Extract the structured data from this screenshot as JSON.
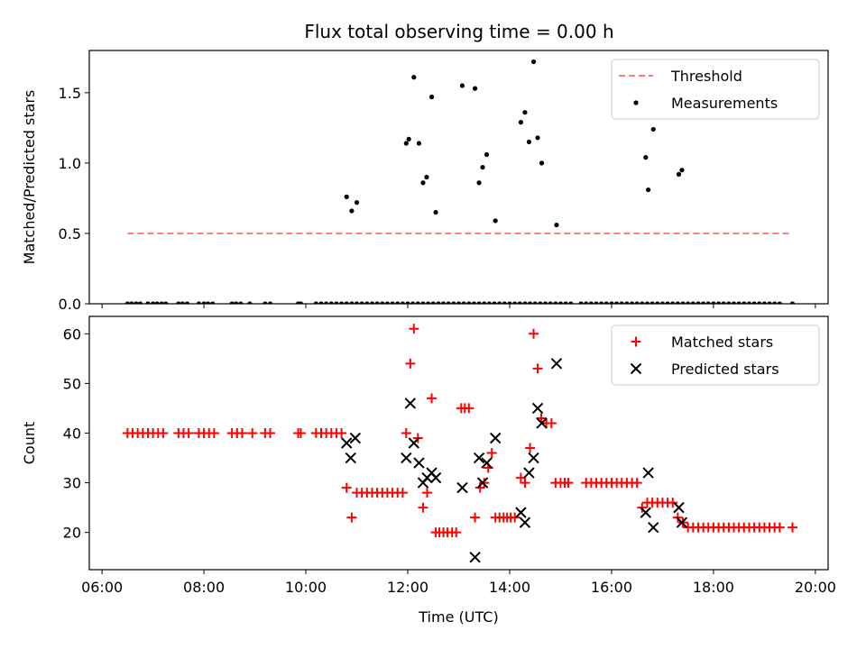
{
  "figure": {
    "title": "Flux total observing time = 0.00 h"
  },
  "chart_data": [
    {
      "type": "scatter",
      "panel": "top",
      "xlabel": "",
      "ylabel": "Matched/Predicted stars",
      "x_unit": "hour-of-day UTC",
      "xlim": [
        5.75,
        20.25
      ],
      "ylim": [
        0.0,
        1.8
      ],
      "yticks": [
        0.0,
        0.5,
        1.0,
        1.5
      ],
      "ytick_labels": [
        "0.0",
        "0.5",
        "1.0",
        "1.5"
      ],
      "xticks": [
        6,
        8,
        10,
        12,
        14,
        16,
        18,
        20
      ],
      "grid": false,
      "legend_position": "top-right",
      "series": [
        {
          "name": "Threshold",
          "style": "dashed-line",
          "color": "#ff7f7f",
          "x": [
            6.5,
            19.5
          ],
          "y": [
            0.5,
            0.5
          ]
        },
        {
          "name": "Measurements",
          "style": "dot",
          "color": "#000000",
          "x": [
            6.5,
            6.58,
            6.67,
            6.75,
            6.9,
            7.0,
            7.08,
            7.17,
            7.25,
            7.5,
            7.58,
            7.67,
            7.9,
            8.0,
            8.08,
            8.17,
            8.55,
            8.63,
            8.72,
            8.9,
            9.2,
            9.3,
            9.85,
            9.9,
            10.2,
            10.3,
            10.4,
            10.5,
            10.6,
            10.7,
            10.8,
            10.9,
            11.0,
            11.1,
            11.2,
            11.3,
            11.4,
            11.5,
            11.6,
            11.7,
            11.8,
            11.9,
            12.0,
            12.1,
            12.2,
            12.3,
            12.4,
            12.5,
            12.6,
            12.7,
            12.8,
            12.9,
            13.0,
            13.1,
            13.2,
            13.3,
            13.4,
            13.5,
            13.6,
            13.7,
            13.8,
            13.9,
            14.0,
            14.1,
            14.2,
            14.3,
            14.4,
            14.5,
            14.6,
            14.7,
            14.8,
            14.9,
            15.0,
            15.1,
            15.2,
            15.4,
            15.5,
            15.6,
            15.7,
            15.8,
            15.9,
            16.0,
            16.1,
            16.2,
            16.3,
            16.4,
            16.5,
            16.6,
            16.7,
            16.8,
            16.9,
            17.0,
            17.1,
            17.2,
            17.3,
            17.4,
            17.5,
            17.6,
            17.7,
            17.8,
            17.9,
            18.0,
            18.1,
            18.2,
            18.3,
            18.4,
            18.5,
            18.6,
            18.7,
            18.8,
            18.9,
            19.0,
            19.1,
            19.2,
            19.3,
            19.55,
            10.8,
            10.9,
            11.0,
            11.97,
            12.02,
            12.12,
            12.22,
            12.3,
            12.37,
            12.47,
            12.55,
            13.07,
            13.32,
            13.4,
            13.47,
            13.55,
            13.72,
            14.22,
            14.3,
            14.38,
            14.47,
            14.55,
            14.63,
            14.92,
            16.67,
            16.72,
            16.82,
            17.32,
            17.38
          ],
          "y": [
            0,
            0,
            0,
            0,
            0,
            0,
            0,
            0,
            0,
            0,
            0,
            0,
            0,
            0,
            0,
            0,
            0,
            0,
            0,
            0,
            0,
            0,
            0,
            0,
            0,
            0,
            0,
            0,
            0,
            0,
            0,
            0,
            0,
            0,
            0,
            0,
            0,
            0,
            0,
            0,
            0,
            0,
            0,
            0,
            0,
            0,
            0,
            0,
            0,
            0,
            0,
            0,
            0,
            0,
            0,
            0,
            0,
            0,
            0,
            0,
            0,
            0,
            0,
            0,
            0,
            0,
            0,
            0,
            0,
            0,
            0,
            0,
            0,
            0,
            0,
            0,
            0,
            0,
            0,
            0,
            0,
            0,
            0,
            0,
            0,
            0,
            0,
            0,
            0,
            0,
            0,
            0,
            0,
            0,
            0,
            0,
            0,
            0,
            0,
            0,
            0,
            0,
            0,
            0,
            0,
            0,
            0,
            0,
            0,
            0,
            0,
            0,
            0,
            0,
            0,
            0,
            0.76,
            0.66,
            0.72,
            1.14,
            1.17,
            1.61,
            1.14,
            0.86,
            0.9,
            1.47,
            0.65,
            1.55,
            1.53,
            0.86,
            0.97,
            1.06,
            0.59,
            1.29,
            1.36,
            1.15,
            1.72,
            1.18,
            1.0,
            0.56,
            1.04,
            0.81,
            1.24,
            0.92,
            0.95
          ]
        }
      ]
    },
    {
      "type": "scatter",
      "panel": "bottom",
      "xlabel": "Time (UTC)",
      "ylabel": "Count",
      "x_unit": "hour-of-day UTC",
      "xlim": [
        5.75,
        20.25
      ],
      "ylim": [
        12.5,
        63.5
      ],
      "yticks": [
        20,
        30,
        40,
        50,
        60
      ],
      "ytick_labels": [
        "20",
        "30",
        "40",
        "50",
        "60"
      ],
      "xticks": [
        6,
        8,
        10,
        12,
        14,
        16,
        18,
        20
      ],
      "xtick_labels": [
        "06:00",
        "08:00",
        "10:00",
        "12:00",
        "14:00",
        "16:00",
        "18:00",
        "20:00"
      ],
      "grid": false,
      "legend_position": "top-right",
      "series": [
        {
          "name": "Matched stars",
          "marker": "plus",
          "color": "#ff0000",
          "x": [
            6.5,
            6.6,
            6.7,
            6.8,
            6.9,
            7.0,
            7.1,
            7.2,
            7.5,
            7.6,
            7.7,
            7.9,
            8.0,
            8.1,
            8.2,
            8.55,
            8.65,
            8.75,
            8.95,
            9.2,
            9.3,
            9.85,
            9.9,
            10.2,
            10.3,
            10.4,
            10.5,
            10.6,
            10.7,
            10.8,
            10.9,
            11.0,
            11.1,
            11.2,
            11.3,
            11.4,
            11.5,
            11.6,
            11.7,
            11.8,
            11.9,
            11.97,
            12.05,
            12.12,
            12.2,
            12.3,
            12.38,
            12.47,
            12.55,
            12.62,
            12.7,
            12.78,
            12.87,
            12.95,
            13.05,
            13.12,
            13.2,
            13.32,
            13.42,
            13.5,
            13.58,
            13.65,
            13.72,
            13.8,
            13.88,
            13.95,
            14.02,
            14.1,
            14.22,
            14.3,
            14.4,
            14.47,
            14.55,
            14.62,
            14.72,
            14.82,
            14.9,
            15.0,
            15.08,
            15.15,
            15.5,
            15.6,
            15.7,
            15.8,
            15.9,
            16.0,
            16.1,
            16.2,
            16.3,
            16.4,
            16.5,
            16.6,
            16.7,
            16.8,
            16.9,
            17.0,
            17.1,
            17.2,
            17.3,
            17.4,
            17.5,
            17.6,
            17.7,
            17.8,
            17.9,
            18.0,
            18.1,
            18.2,
            18.3,
            18.4,
            18.5,
            18.6,
            18.7,
            18.8,
            18.9,
            19.0,
            19.1,
            19.2,
            19.3,
            19.55
          ],
          "y": [
            40,
            40,
            40,
            40,
            40,
            40,
            40,
            40,
            40,
            40,
            40,
            40,
            40,
            40,
            40,
            40,
            40,
            40,
            40,
            40,
            40,
            40,
            40,
            40,
            40,
            40,
            40,
            40,
            40,
            29,
            23,
            28,
            28,
            28,
            28,
            28,
            28,
            28,
            28,
            28,
            28,
            40,
            54,
            61,
            39,
            25,
            28,
            47,
            20,
            20,
            20,
            20,
            20,
            20,
            45,
            45,
            45,
            23,
            29,
            30,
            33,
            36,
            23,
            23,
            23,
            23,
            23,
            23,
            31,
            30,
            37,
            60,
            53,
            43,
            42,
            42,
            30,
            30,
            30,
            30,
            30,
            30,
            30,
            30,
            30,
            30,
            30,
            30,
            30,
            30,
            30,
            25,
            26,
            26,
            26,
            26,
            26,
            26,
            23,
            22,
            21,
            21,
            21,
            21,
            21,
            21,
            21,
            21,
            21,
            21,
            21,
            21,
            21,
            21,
            21,
            21,
            21,
            21,
            21,
            21
          ]
        },
        {
          "name": "Predicted stars",
          "marker": "x",
          "color": "#000000",
          "x": [
            10.8,
            10.88,
            10.97,
            11.97,
            12.05,
            12.12,
            12.22,
            12.3,
            12.38,
            12.47,
            12.55,
            13.07,
            13.32,
            13.4,
            13.47,
            13.55,
            13.72,
            14.22,
            14.3,
            14.38,
            14.47,
            14.55,
            14.63,
            14.92,
            16.67,
            16.72,
            16.82,
            17.32,
            17.38
          ],
          "y": [
            38,
            35,
            39,
            35,
            46,
            38,
            34,
            30,
            31,
            32,
            31,
            29,
            15,
            35,
            30,
            34,
            39,
            24,
            22,
            32,
            35,
            45,
            42,
            54,
            24,
            32,
            21,
            25,
            22
          ]
        }
      ]
    }
  ]
}
